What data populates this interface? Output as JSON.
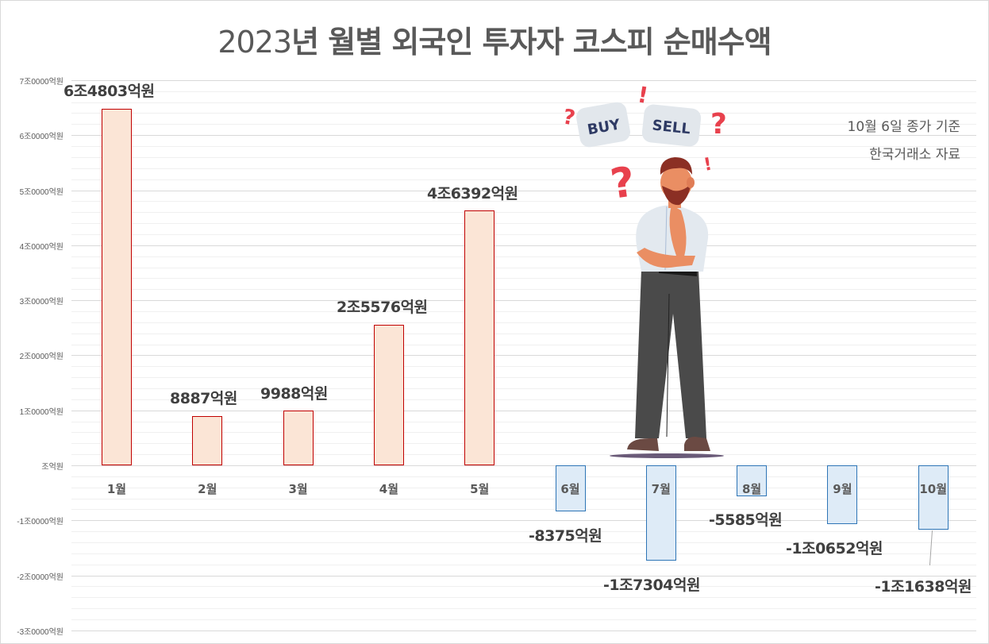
{
  "chart_data": {
    "type": "bar",
    "title": "2023년 월별 외국인 투자자 코스피 순매수액",
    "xlabel": "",
    "ylabel": "",
    "ylim": [
      -30000,
      70000
    ],
    "unit": "억원",
    "grid": true,
    "legend": "none",
    "categories": [
      "1월",
      "2월",
      "3월",
      "4월",
      "5월",
      "6월",
      "7월",
      "8월",
      "9월",
      "10월"
    ],
    "values": [
      64803,
      8887,
      9988,
      25576,
      46392,
      -8375,
      -17304,
      -5585,
      -10652,
      -11638
    ],
    "data_labels": [
      "6조4803억원",
      "8887억원",
      "9988억원",
      "2조5576억원",
      "4조6392억원",
      "-8375억원",
      "-1조7304억원",
      "-5585억원",
      "-1조0652억원",
      "-1조1638억원"
    ],
    "y_ticks": [
      "7조0000억원",
      "6조0000억원",
      "5조0000억원",
      "4조0000억원",
      "3조0000억원",
      "2조0000억원",
      "1조0000억원",
      "조억원",
      "-1조0000억원",
      "-2조0000억원",
      "-3조0000억원"
    ],
    "y_tick_values": [
      70000,
      60000,
      50000,
      40000,
      30000,
      20000,
      10000,
      0,
      -10000,
      -20000,
      -30000
    ],
    "annotations": [
      "10월 6일 종가 기준",
      "한국거래소 자료"
    ],
    "colors": {
      "positive_fill": "#fbe5d6",
      "positive_border": "#c00000",
      "negative_fill": "#deebf7",
      "negative_border": "#2e75b6"
    }
  },
  "title": {
    "year": "2023",
    "rest": "년 월별 외국인 투자자 코스피 순매수액"
  },
  "notes": {
    "line1": "10월 6일 종가 기준",
    "line2": "한국거래소 자료"
  },
  "illustration": {
    "description": "thinking man with BUY and SELL signs",
    "buy_label": "BUY",
    "sell_label": "SELL"
  }
}
